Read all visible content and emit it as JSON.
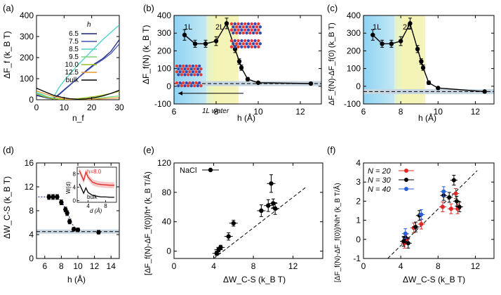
{
  "figure": {
    "colors": {
      "blue": "#8fd3f4",
      "yellow": "#f4f4b4",
      "band": "#c7d6e0",
      "red": "#e02a2a",
      "blue_pt": "#2b5fd9"
    }
  },
  "chart_data": [
    {
      "type": "line",
      "panel": "(a)",
      "xlabel": "n_f",
      "ylabel": "ΔF_f (k_B T)",
      "xlim": [
        0,
        30
      ],
      "ylim": [
        0,
        400
      ],
      "xticks": [
        "0",
        "10",
        "20",
        "30"
      ],
      "yticks": [
        "0",
        "100",
        "200",
        "300",
        "400"
      ],
      "legend_title": "h",
      "series": [
        {
          "name": "6.5",
          "color": "#1a237e",
          "x": [
            0,
            2,
            4,
            6,
            8,
            10,
            12,
            15,
            18,
            21,
            24,
            27,
            30
          ],
          "y": [
            20,
            14,
            8,
            4,
            22,
            45,
            68,
            102,
            138,
            170,
            195,
            230,
            285
          ]
        },
        {
          "name": "7.5",
          "color": "#3f51b5",
          "x": [
            0,
            2,
            4,
            6,
            8,
            10,
            12,
            15,
            18,
            21,
            24,
            27,
            30
          ],
          "y": [
            25,
            18,
            10,
            5,
            25,
            48,
            70,
            102,
            135,
            165,
            190,
            220,
            265
          ]
        },
        {
          "name": "8.5",
          "color": "#4dd0c9",
          "x": [
            0,
            2,
            4,
            6,
            8,
            10,
            12,
            15,
            18,
            21,
            24,
            27,
            30
          ],
          "y": [
            35,
            25,
            14,
            8,
            55,
            90,
            120,
            165,
            205,
            245,
            285,
            320,
            355
          ]
        },
        {
          "name": "9.5",
          "color": "#7fd37a",
          "x": [
            0,
            3,
            6,
            9,
            12,
            15,
            18,
            21,
            24,
            27,
            30
          ],
          "y": [
            30,
            15,
            6,
            2,
            2,
            3,
            5,
            7,
            10,
            14,
            18
          ]
        },
        {
          "name": "10.0",
          "color": "#9ac11e",
          "x": [
            0,
            3,
            6,
            9,
            12,
            15,
            18,
            21,
            24,
            27,
            30
          ],
          "y": [
            28,
            14,
            5,
            2,
            3,
            5,
            10,
            15,
            22,
            30,
            40
          ]
        },
        {
          "name": "12.5",
          "color": "#e89a2c",
          "x": [
            0,
            3,
            6,
            9,
            12,
            15,
            18,
            21,
            24,
            27,
            30
          ],
          "y": [
            42,
            28,
            16,
            6,
            2,
            1,
            2,
            3,
            5,
            7,
            9
          ]
        },
        {
          "name": "bulk",
          "color": "#000000",
          "x": [
            0,
            3,
            6,
            9,
            12,
            15,
            18,
            21,
            24,
            27,
            30
          ],
          "y": [
            55,
            38,
            22,
            12,
            5,
            2,
            4,
            10,
            18,
            30,
            45
          ]
        }
      ]
    },
    {
      "type": "line",
      "panel": "(b)",
      "xlabel": "h (Å)",
      "ylabel": "ΔF_f(N) (k_B T)",
      "xlim": [
        6,
        13
      ],
      "ylim": [
        -100,
        400
      ],
      "xticks": [
        "6",
        "8",
        "10",
        "12"
      ],
      "yticks": [
        "-100",
        "0",
        "100",
        "200",
        "300",
        "400"
      ],
      "regions": [
        {
          "label": "1L",
          "from": 6,
          "to": 7.6
        },
        {
          "label": "2L",
          "from": 7.6,
          "to": 9.2
        }
      ],
      "annotation": "1L water",
      "arrow_range": [
        6,
        9.3
      ],
      "bulk_value": 15,
      "x": [
        6.5,
        7.0,
        7.5,
        8.0,
        8.5,
        8.9,
        9.1,
        9.2,
        9.5,
        10.0,
        12.5
      ],
      "y": [
        290,
        240,
        240,
        255,
        355,
        210,
        140,
        105,
        40,
        20,
        15
      ],
      "yerr": [
        30,
        20,
        20,
        25,
        30,
        20,
        15,
        15,
        10,
        5,
        5
      ]
    },
    {
      "type": "line",
      "panel": "(c)",
      "xlabel": "h (Å)",
      "ylabel": "ΔF_f(N)-ΔF_f(0) (k_B T)",
      "xlim": [
        6,
        13
      ],
      "ylim": [
        -100,
        400
      ],
      "xticks": [
        "6",
        "8",
        "10",
        "12"
      ],
      "yticks": [
        "-100",
        "0",
        "100",
        "200",
        "300",
        "400"
      ],
      "regions": [
        {
          "label": "1L",
          "from": 6,
          "to": 7.6
        },
        {
          "label": "2L",
          "from": 7.6,
          "to": 9.2
        }
      ],
      "bulk_value": -30,
      "x": [
        6.5,
        7.0,
        7.5,
        8.0,
        8.5,
        8.9,
        9.1,
        9.2,
        9.5,
        10.0,
        12.5
      ],
      "y": [
        290,
        240,
        240,
        255,
        355,
        210,
        140,
        105,
        20,
        -10,
        -30
      ],
      "yerr": [
        30,
        20,
        20,
        25,
        30,
        20,
        15,
        15,
        10,
        5,
        5
      ]
    },
    {
      "type": "scatter",
      "panel": "(d)",
      "xlabel": "h (Å)",
      "ylabel": "ΔW_C-S (k_B T)",
      "xlim": [
        5,
        15
      ],
      "ylim": [
        0,
        16
      ],
      "xticks": [
        "6",
        "8",
        "10",
        "12",
        "14"
      ],
      "yticks": [
        "0",
        "4",
        "8",
        "12",
        "16"
      ],
      "bulk_value": 4.5,
      "x": [
        6.5,
        7.0,
        7.5,
        8.0,
        8.5,
        8.7,
        9.0,
        9.5,
        10.0,
        12.5
      ],
      "y": [
        10.3,
        10.3,
        10.3,
        9.4,
        8.2,
        7.6,
        6.2,
        4.9,
        4.8,
        4.4
      ],
      "yerr": [
        0.4,
        0.4,
        0.4,
        0.4,
        0.4,
        0.4,
        0.4,
        0.3,
        0.3,
        0.3
      ],
      "inset": {
        "xlabel": "d (Å)",
        "ylabel": "W(d)",
        "xticks": [
          "4",
          "8"
        ],
        "yticks": [
          "0",
          "4",
          "8"
        ],
        "labels": [
          "h=8.0",
          "bulk"
        ],
        "series": [
          {
            "name": "h=8.0",
            "color": "#e02a2a",
            "x": [
              2,
              3,
              3.5,
              4,
              5,
              6,
              7,
              8,
              9,
              10
            ],
            "y": [
              9,
              6,
              8.5,
              7,
              5.5,
              5,
              4.8,
              4.7,
              4.6,
              4.6
            ]
          },
          {
            "name": "bulk",
            "color": "#000000",
            "x": [
              2,
              3,
              3.5,
              4,
              5,
              6,
              7,
              8,
              9,
              10
            ],
            "y": [
              5,
              2.2,
              3.8,
              2.4,
              1.6,
              1.3,
              1.1,
              1.1,
              1.0,
              1.0
            ]
          }
        ]
      }
    },
    {
      "type": "scatter",
      "panel": "(e)",
      "xlabel": "ΔW_C-S (k_B T)",
      "ylabel": "[ΔF_f(N)-ΔF_f(0)]/h* (k_B T/Å)",
      "xlim": [
        0,
        15
      ],
      "ylim": [
        -10,
        120
      ],
      "xticks": [
        "0",
        "4",
        "8",
        "12"
      ],
      "yticks": [
        "0",
        "40",
        "80",
        "120"
      ],
      "legend": "NaCl",
      "x": [
        4.3,
        4.5,
        4.7,
        5.5,
        6.0,
        8.8,
        9.5,
        9.8,
        10.0,
        10.2
      ],
      "y": [
        -3,
        2,
        5,
        20,
        38,
        55,
        62,
        92,
        65,
        58
      ],
      "yerr": [
        3,
        3,
        3,
        5,
        4,
        8,
        8,
        12,
        6,
        8
      ]
    },
    {
      "type": "scatter",
      "panel": "(f)",
      "xlabel": "ΔW_C-S (k_B T)",
      "ylabel": "[ΔF_f(N)-ΔF_f(0)]/Nh* (k_B T/Å)",
      "xlim": [
        0,
        14
      ],
      "ylim": [
        -1,
        4
      ],
      "xticks": [
        "0",
        "4",
        "8",
        "12"
      ],
      "yticks": [
        "-1",
        "0",
        "1",
        "2",
        "3",
        "4"
      ],
      "series": [
        {
          "name": "N = 20",
          "color": "#e02a2a",
          "x": [
            4.4,
            4.6,
            5.4,
            6.2,
            8.5,
            9.4,
            9.9,
            10.1
          ],
          "y": [
            -0.2,
            0.0,
            0.6,
            0.8,
            1.7,
            1.6,
            2.4,
            1.6
          ]
        },
        {
          "name": "N = 30",
          "color": "#000000",
          "x": [
            4.3,
            4.5,
            4.8,
            5.6,
            6.0,
            8.6,
            9.2,
            9.7,
            10.0,
            10.3
          ],
          "y": [
            -0.1,
            0.1,
            -0.2,
            0.65,
            1.25,
            2.3,
            2.2,
            3.1,
            2.0,
            1.7
          ]
        },
        {
          "name": "N = 40",
          "color": "#2b5fd9",
          "x": [
            4.5,
            6.2,
            8.6
          ],
          "y": [
            0.3,
            1.3,
            2.5
          ]
        }
      ]
    }
  ]
}
